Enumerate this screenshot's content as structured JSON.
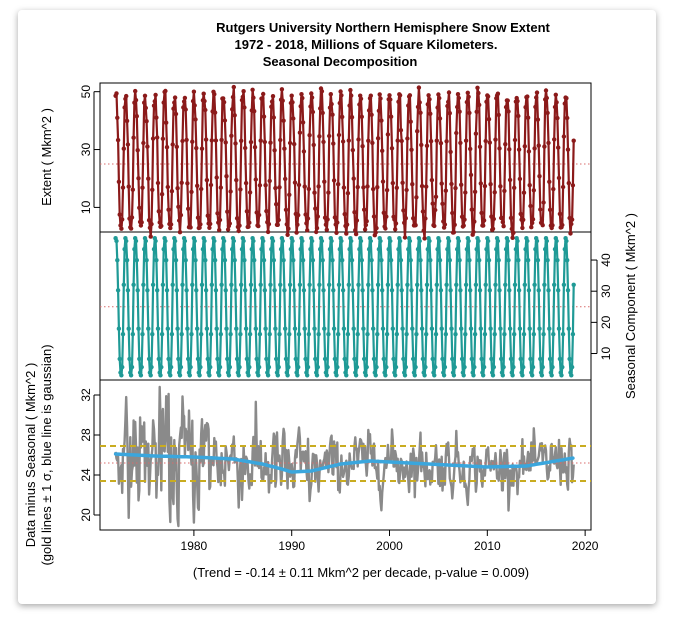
{
  "title_lines": [
    "Rutgers University Northern Hemisphere Snow Extent",
    "1972 - 2018, Millions of Square Kilometers.",
    "Seasonal Decomposition"
  ],
  "chart_data": [
    {
      "panel": "top",
      "type": "line",
      "ylabel": "Extent ( Mkm^2 )",
      "yticks": [
        10,
        30,
        50
      ],
      "ylim": [
        1.5,
        53
      ],
      "x_range": [
        1972,
        2018.9
      ],
      "series": [
        {
          "kind": "monthly oscillation",
          "min": 2.5,
          "max": 49,
          "mean": 25,
          "points_per_year": 12,
          "color": "#8b1a1a"
        }
      ],
      "reference_line": {
        "y": 25,
        "style": "dotted",
        "color": "#d96b6b"
      }
    },
    {
      "panel": "middle",
      "type": "line",
      "ylabel": "Seasonal Component ( Mkm^2 )",
      "ylabel_side": "right",
      "yticks": [
        10,
        20,
        30,
        40
      ],
      "ylim": [
        1.5,
        49
      ],
      "x_range": [
        1972,
        2018.9
      ],
      "series": [
        {
          "kind": "repeating seasonal cycle",
          "min": 3,
          "max": 47,
          "points_per_year": 12,
          "color": "#1f9a96"
        }
      ],
      "reference_line": {
        "y": 25,
        "style": "dotted",
        "color": "#d96b6b"
      }
    },
    {
      "panel": "bottom",
      "type": "line",
      "ylabel_lines": [
        "Data minus Seasonal ( Mkm^2 )",
        "(gold lines ± 1 σ, blue line is gaussian)"
      ],
      "yticks": [
        20,
        24,
        28,
        32
      ],
      "ylim": [
        18.5,
        33.5
      ],
      "xticks": [
        1980,
        1990,
        2000,
        2010,
        2020
      ],
      "xlim": [
        1970.4,
        2020.6
      ],
      "series": [
        {
          "name": "residual",
          "color": "#8a8a8a",
          "center": 25.2
        },
        {
          "name": "gaussian",
          "color": "#3aa6dd",
          "x": [
            1972,
            1976,
            1980,
            1984,
            1987,
            1989,
            1990,
            1992,
            1995,
            1998,
            2002,
            2006,
            2010,
            2014,
            2017,
            2018.8
          ],
          "y": [
            26.1,
            25.9,
            25.8,
            25.6,
            25.1,
            24.6,
            24.3,
            24.4,
            25.1,
            25.4,
            25.2,
            25.0,
            24.8,
            24.9,
            25.4,
            25.7
          ]
        }
      ],
      "sigma_lines": {
        "values": [
          23.4,
          26.9
        ],
        "color": "#c9ac20"
      },
      "reference_line": {
        "y": 25.2,
        "style": "dotted",
        "color": "#d96b6b"
      },
      "footnote": "(Trend = -0.14 ± 0.11 Mkm^2 per decade, p-value = 0.009)"
    }
  ]
}
